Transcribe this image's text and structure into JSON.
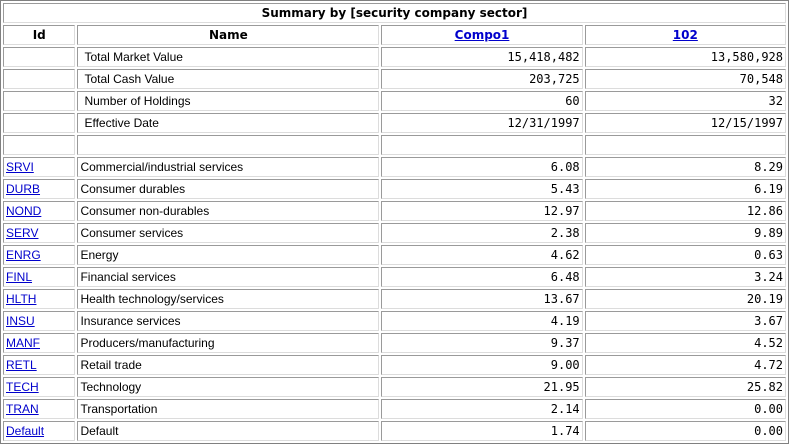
{
  "title": "Summary by [security company sector]",
  "columns": {
    "id": "Id",
    "name": "Name",
    "col1": "Compo1",
    "col2": "102"
  },
  "summary_rows": [
    {
      "name": "Total Market Value",
      "v1": "15,418,482",
      "v2": "13,580,928"
    },
    {
      "name": "Total Cash Value",
      "v1": "203,725",
      "v2": "70,548"
    },
    {
      "name": "Number of Holdings",
      "v1": "60",
      "v2": "32"
    },
    {
      "name": "Effective Date",
      "v1": "12/31/1997",
      "v2": "12/15/1997"
    }
  ],
  "sector_rows": [
    {
      "id": "SRVI",
      "name": "Commercial/industrial services",
      "v1": "6.08",
      "v2": "8.29"
    },
    {
      "id": "DURB",
      "name": "Consumer durables",
      "v1": "5.43",
      "v2": "6.19"
    },
    {
      "id": "NOND",
      "name": "Consumer non-durables",
      "v1": "12.97",
      "v2": "12.86"
    },
    {
      "id": "SERV",
      "name": "Consumer services",
      "v1": "2.38",
      "v2": "9.89"
    },
    {
      "id": "ENRG",
      "name": "Energy",
      "v1": "4.62",
      "v2": "0.63"
    },
    {
      "id": "FINL",
      "name": "Financial services",
      "v1": "6.48",
      "v2": "3.24"
    },
    {
      "id": "HLTH",
      "name": "Health technology/services",
      "v1": "13.67",
      "v2": "20.19"
    },
    {
      "id": "INSU",
      "name": "Insurance services",
      "v1": "4.19",
      "v2": "3.67"
    },
    {
      "id": "MANF",
      "name": "Producers/manufacturing",
      "v1": "9.37",
      "v2": "4.52"
    },
    {
      "id": "RETL",
      "name": "Retail trade",
      "v1": "9.00",
      "v2": "4.72"
    },
    {
      "id": "TECH",
      "name": "Technology",
      "v1": "21.95",
      "v2": "25.82"
    },
    {
      "id": "TRAN",
      "name": "Transportation",
      "v1": "2.14",
      "v2": "0.00"
    },
    {
      "id": "Default",
      "name": "Default",
      "v1": "1.74",
      "v2": "0.00"
    }
  ]
}
